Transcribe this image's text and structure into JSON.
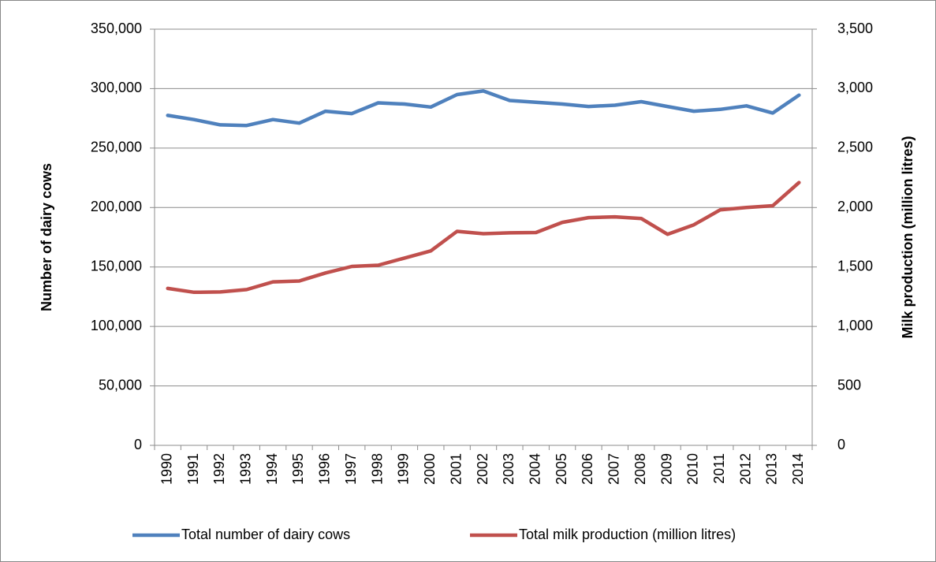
{
  "chart_data": {
    "type": "line",
    "categories": [
      "1990",
      "1991",
      "1992",
      "1993",
      "1994",
      "1995",
      "1996",
      "1997",
      "1998",
      "1999",
      "2000",
      "2001",
      "2002",
      "2003",
      "2004",
      "2005",
      "2006",
      "2007",
      "2008",
      "2009",
      "2010",
      "2011",
      "2012",
      "2013",
      "2014"
    ],
    "y_label": "Number of dairy cows",
    "y2_label": "Milk production (million litres)",
    "ylim": [
      0,
      350000
    ],
    "yticks": [
      0,
      {
        "value": 50000,
        "label": "50,000"
      },
      {
        "value": 100000,
        "label": "100,000"
      },
      {
        "value": 150000,
        "label": "150,000"
      },
      {
        "value": 200000,
        "label": "200,000"
      },
      {
        "value": 250000,
        "label": "250,000"
      },
      {
        "value": 300000,
        "label": "300,000"
      },
      {
        "value": 350000,
        "label": "350,000"
      }
    ],
    "y2lim": [
      0,
      3500
    ],
    "y2ticks": [
      0,
      500,
      {
        "value": 1000,
        "label": "1,000"
      },
      {
        "value": 1500,
        "label": "1,500"
      },
      {
        "value": 2000,
        "label": "2,000"
      },
      {
        "value": 2500,
        "label": "2,500"
      },
      {
        "value": 3000,
        "label": "3,000"
      },
      {
        "value": 3500,
        "label": "3,500"
      }
    ],
    "grid": true,
    "legend": "bottom",
    "series": [
      {
        "name": "Total number of dairy cows",
        "color": "#4f81bd",
        "values": [
          277500,
          274000,
          269500,
          269000,
          274000,
          271000,
          281000,
          279000,
          288000,
          287000,
          284500,
          295000,
          298000,
          290000,
          288500,
          287000,
          285000,
          286000,
          289000,
          285000,
          281000,
          282500,
          285500,
          279500,
          294500
        ]
      },
      {
        "name": "Total milk production (million litres)",
        "color": "#c0504d",
        "axis": "y2",
        "values": [
          1320,
          1287,
          1290,
          1310,
          1375,
          1382,
          1450,
          1505,
          1515,
          1575,
          1635,
          1800,
          1780,
          1787,
          1790,
          1875,
          1915,
          1922,
          1908,
          1775,
          1855,
          1980,
          2000,
          2015,
          2210
        ]
      }
    ]
  }
}
